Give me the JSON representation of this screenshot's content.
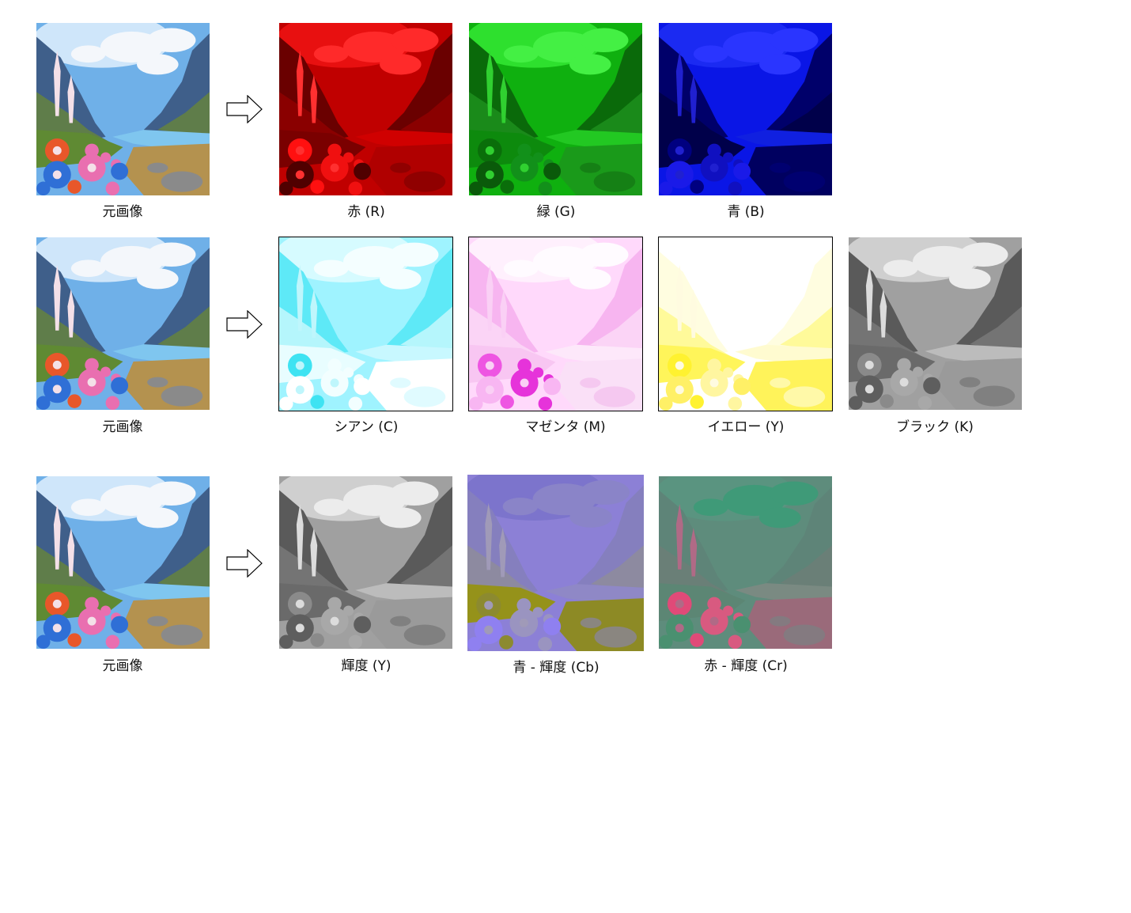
{
  "rows": [
    {
      "original_label": "元画像",
      "channels": [
        {
          "label": "赤 (R)",
          "palette": "red"
        },
        {
          "label": "緑 (G)",
          "palette": "green"
        },
        {
          "label": "青 (B)",
          "palette": "blue"
        }
      ]
    },
    {
      "original_label": "元画像",
      "channels": [
        {
          "label": "シアン (C)",
          "palette": "cyan"
        },
        {
          "label": "マゼンタ (M)",
          "palette": "magenta"
        },
        {
          "label": "イエロー (Y)",
          "palette": "yellow"
        },
        {
          "label": "ブラック (K)",
          "palette": "gray"
        }
      ]
    },
    {
      "original_label": "元画像",
      "channels": [
        {
          "label": "輝度 (Y)",
          "palette": "gray"
        },
        {
          "label": "青 - 輝度 (Cb)",
          "palette": "cb"
        },
        {
          "label": "赤 - 輝度 (Cr)",
          "palette": "cr"
        }
      ]
    }
  ],
  "icons": {
    "arrow": "right-arrow-icon"
  },
  "palettes": {
    "original": {
      "sky": "#6fb0e8",
      "sky2": "#cfe6fa",
      "cloud": "#f4f7fb",
      "mtn": "#3f5f8a",
      "mtn2": "#5f7d4a",
      "grass": "#5f8a33",
      "river": "#7fc6ef",
      "ground": "#b4924f",
      "rock": "#8a8a8a",
      "f1": "#e8572a",
      "f2": "#e96fb0",
      "f3": "#2f6fd6",
      "f4": "#f4e0e8"
    },
    "red": {
      "sky": "#c00000",
      "sky2": "#e81010",
      "cloud": "#ff2a2a",
      "mtn": "#6a0000",
      "mtn2": "#8a0000",
      "grass": "#7a0000",
      "river": "#d00000",
      "ground": "#b00000",
      "rock": "#900000",
      "f1": "#ff1010",
      "f2": "#f01010",
      "f3": "#500000",
      "f4": "#ff3030"
    },
    "green": {
      "sky": "#0fb00f",
      "sky2": "#2ee02e",
      "cloud": "#44f044",
      "mtn": "#0a6a0a",
      "mtn2": "#1a8a1a",
      "grass": "#0d8a0d",
      "river": "#22c822",
      "ground": "#1a9a1a",
      "rock": "#158015",
      "f1": "#0a6e0a",
      "f2": "#12901a",
      "f3": "#0a5a0a",
      "f4": "#30d030"
    },
    "blue": {
      "sky": "#0a16e6",
      "sky2": "#1b2af2",
      "cloud": "#2a35ff",
      "mtn": "#00006a",
      "mtn2": "#00004a",
      "grass": "#00004a",
      "river": "#1020e0",
      "ground": "#000060",
      "rock": "#000070",
      "f1": "#000080",
      "f2": "#1010c0",
      "f3": "#1a1ae8",
      "f4": "#2020d0"
    },
    "cyan": {
      "sky": "#9ff3ff",
      "sky2": "#d6fbff",
      "cloud": "#f4feff",
      "mtn": "#5ee9f7",
      "mtn2": "#b5f6fc",
      "grass": "#e8fdff",
      "river": "#c8f8ff",
      "ground": "#ffffff",
      "rock": "#e0fbff",
      "f1": "#3ee3f2",
      "f2": "#f2feff",
      "f3": "#ffffff",
      "f4": "#bff6fc"
    },
    "magenta": {
      "sky": "#ffd9fb",
      "sky2": "#fff0fd",
      "cloud": "#fffbff",
      "mtn": "#f7b5f0",
      "mtn2": "#fbd4f6",
      "grass": "#f8c6f2",
      "river": "#fde8fa",
      "ground": "#fae0f7",
      "rock": "#f5c8f0",
      "f1": "#ee55e2",
      "f2": "#e633da",
      "f3": "#f8b6f2",
      "f4": "#fad0f5"
    },
    "yellow": {
      "sky": "#ffffff",
      "sky2": "#ffffff",
      "cloud": "#ffffff",
      "mtn": "#fffde0",
      "mtn2": "#fffa9a",
      "grass": "#fff55a",
      "river": "#fffbd0",
      "ground": "#fff35a",
      "rock": "#fff9a8",
      "f1": "#fff230",
      "f2": "#fff6a0",
      "f3": "#fff066",
      "f4": "#fffbe0"
    },
    "gray": {
      "sky": "#a0a0a0",
      "sky2": "#cfcfcf",
      "cloud": "#ececec",
      "mtn": "#5a5a5a",
      "mtn2": "#747474",
      "grass": "#6a6a6a",
      "river": "#bcbcbc",
      "ground": "#9a9a9a",
      "rock": "#808080",
      "f1": "#8a8a8a",
      "f2": "#a8a8a8",
      "f3": "#5e5e5e",
      "f4": "#dcdcdc"
    },
    "cb": {
      "sky": "#8c80d6",
      "sky2": "#7c74cc",
      "cloud": "#8a84c8",
      "mtn": "#857fbe",
      "mtn2": "#8d8aa0",
      "grass": "#95921a",
      "river": "#8f88c6",
      "ground": "#8d8a25",
      "rock": "#8a8680",
      "f1": "#8c8a30",
      "f2": "#9a94c0",
      "f3": "#8f80f0",
      "f4": "#a09ab8"
    },
    "cr": {
      "sky": "#5e8c7c",
      "sky2": "#5a9480",
      "cloud": "#3f9a78",
      "mtn": "#5e8478",
      "mtn2": "#6a7f77",
      "grass": "#5c8674",
      "river": "#7a8a82",
      "ground": "#9a6a7a",
      "rock": "#847a80",
      "f1": "#e04a78",
      "f2": "#d85a80",
      "f3": "#4a9070",
      "f4": "#b06a86"
    }
  }
}
